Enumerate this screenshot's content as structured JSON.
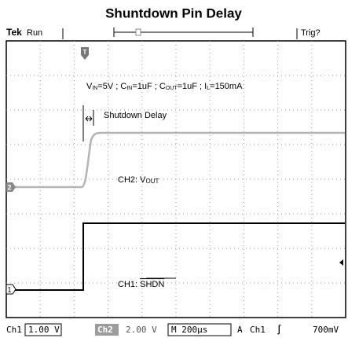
{
  "header": {
    "title": "Shuntdown Pin Delay"
  },
  "top_bar": {
    "brand": "Tek",
    "status": "Run",
    "trigger_marker": "T",
    "trigger_status": "Trig?"
  },
  "annotations": {
    "conditions": [
      {
        "base": "V",
        "sub": "IN",
        "rest": "=5V ; "
      },
      {
        "base": "C",
        "sub": "IN",
        "rest": "=1uF ; "
      },
      {
        "base": "C",
        "sub": "OUT",
        "rest": "=1uF ; "
      },
      {
        "base": "I",
        "sub": "L",
        "rest": "=150mA"
      }
    ],
    "delay_label": "Shutdown Delay",
    "ch2_label": {
      "prefix": "CH2: V",
      "sub": "OUT"
    },
    "ch1_label": {
      "prefix": "CH1: ",
      "overlined": "SHDN"
    }
  },
  "markers": {
    "ch2": "2",
    "ch1": "1"
  },
  "bottom_bar": {
    "ch1": "Ch1",
    "ch1_scale": "1.00 V",
    "ch2": "Ch2",
    "ch2_scale": "2.00 V",
    "timebase": "M 200µs",
    "trigger_mode": "A",
    "trigger_source": "Ch1",
    "trigger_slope": "∫",
    "trigger_level": "700mV"
  }
}
